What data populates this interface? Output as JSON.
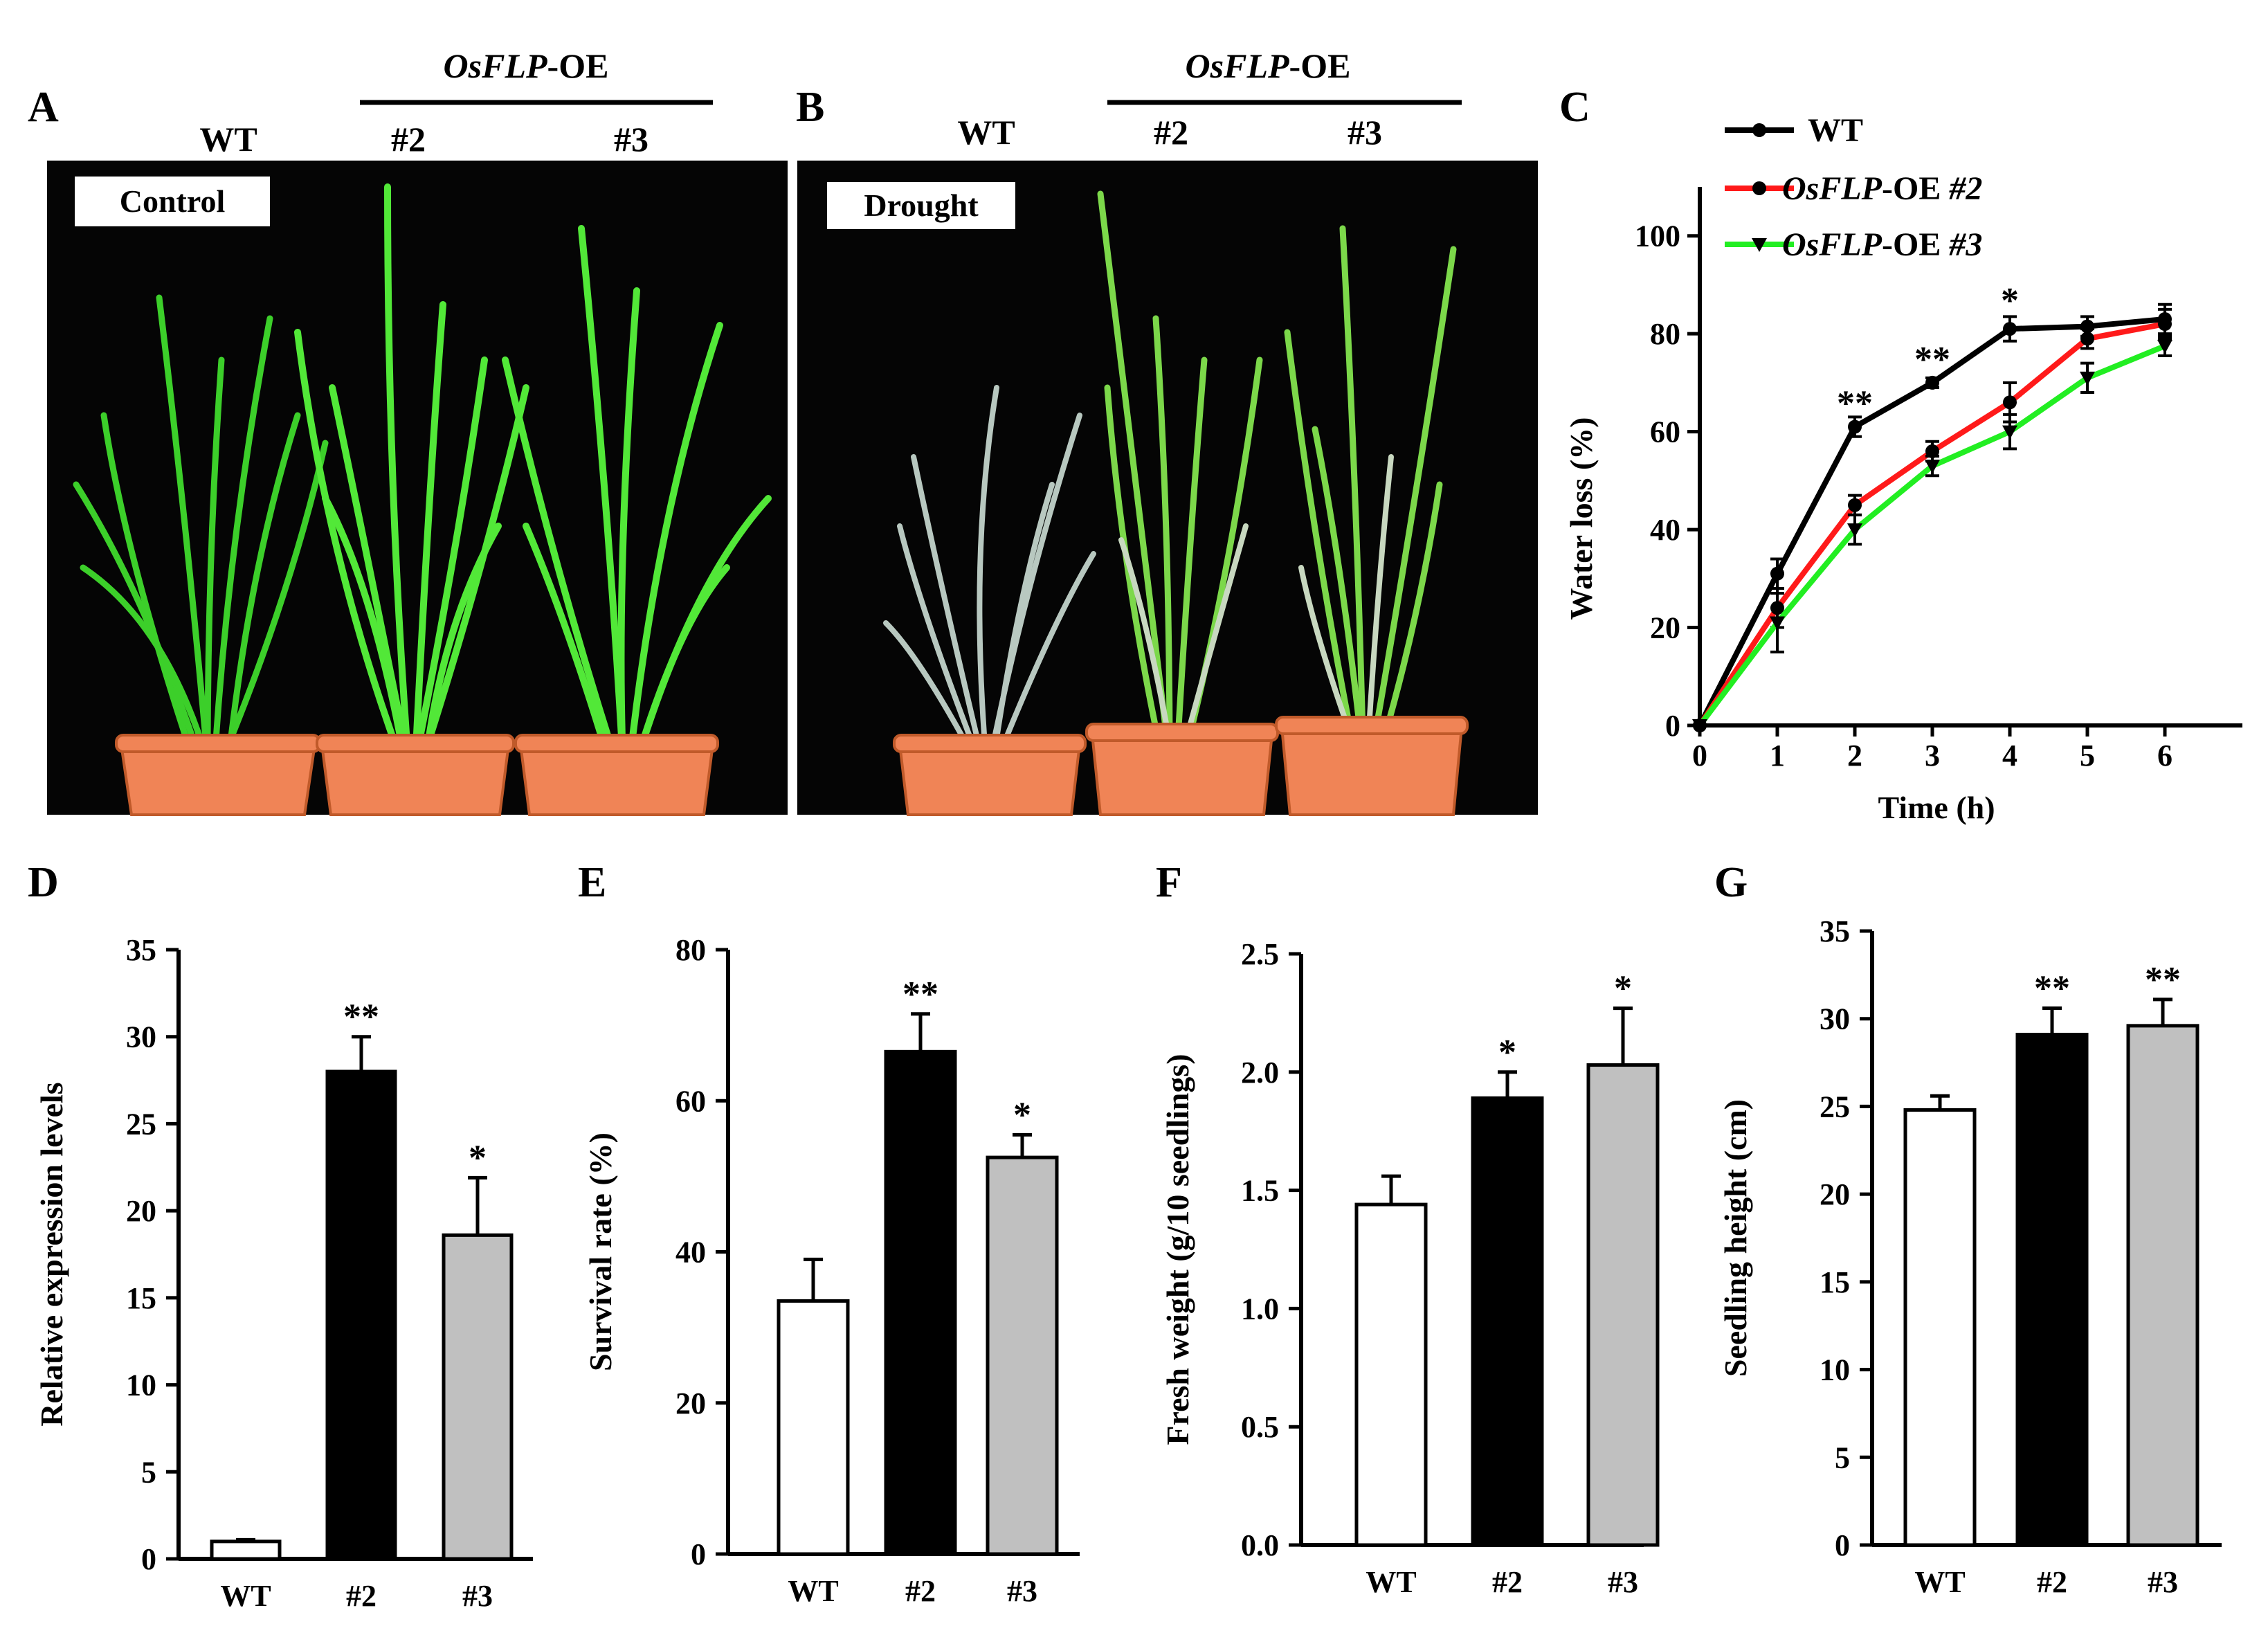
{
  "panels": {
    "A": {
      "letter": "A",
      "condition": "Control",
      "wt": "WT",
      "group_prefix": "OsFLP",
      "group_suffix": "-OE",
      "line2": "#2",
      "line3": "#3"
    },
    "B": {
      "letter": "B",
      "condition": "Drought",
      "wt": "WT",
      "group_prefix": "OsFLP",
      "group_suffix": "-OE",
      "line2": "#2",
      "line3": "#3"
    }
  },
  "colors": {
    "wt": "#000000",
    "oe2": "#ff1a1a",
    "oe3": "#22ee22",
    "bar_wt": "#ffffff",
    "bar_oe2": "#000000",
    "bar_oe3": "#c0c0c0"
  },
  "chart_data": [
    {
      "id": "C",
      "letter": "C",
      "type": "line",
      "title": "",
      "xlabel": "Time (h)",
      "ylabel": "Water loss (%)",
      "x": [
        0,
        1,
        2,
        3,
        4,
        5,
        6
      ],
      "xticks": [
        "0",
        "1",
        "2",
        "3",
        "4",
        "5",
        "6"
      ],
      "yticks": [
        "0",
        "20",
        "40",
        "60",
        "80",
        "100"
      ],
      "ylim": [
        0,
        110
      ],
      "series": [
        {
          "name": "WT",
          "name_italic": "",
          "name_plain": "WT",
          "name_suffix": "",
          "color": "#000000",
          "marker": "circle",
          "values": [
            0,
            31,
            61,
            70,
            81,
            81.5,
            83
          ],
          "errors": [
            0,
            3,
            2,
            1,
            2.5,
            2,
            3
          ]
        },
        {
          "name": "OsFLP-OE #2",
          "name_italic": "OsFLP",
          "name_plain": "-OE ",
          "name_suffix": "#2",
          "color": "#ff1a1a",
          "marker": "circle",
          "values": [
            0,
            24,
            45,
            56,
            66,
            79,
            82
          ],
          "errors": [
            0,
            4,
            2,
            2,
            4,
            2,
            3
          ]
        },
        {
          "name": "OsFLP-OE #3",
          "name_italic": "OsFLP",
          "name_plain": "-OE ",
          "name_suffix": "#3",
          "color": "#22ee22",
          "marker": "triangle",
          "values": [
            0,
            21,
            40,
            53,
            60,
            71,
            77.5
          ],
          "errors": [
            0,
            6,
            3,
            2,
            3.5,
            3,
            2
          ]
        }
      ],
      "annotations": [
        {
          "x": 2,
          "text": "**",
          "y": 62
        },
        {
          "x": 3,
          "text": "**",
          "y": 71
        },
        {
          "x": 4,
          "text": "*",
          "y": 83
        }
      ],
      "legend": "top-left"
    },
    {
      "id": "D",
      "letter": "D",
      "type": "bar",
      "categories": [
        "WT",
        "#2",
        "#3"
      ],
      "values": [
        1,
        28,
        18.6
      ],
      "errors": [
        0.1,
        2,
        3.3
      ],
      "significance": [
        "",
        "**",
        "*"
      ],
      "ylabel": "Relative expression levels",
      "yticks": [
        "0",
        "5",
        "10",
        "15",
        "20",
        "25",
        "30",
        "35"
      ],
      "ylim": [
        0,
        35
      ]
    },
    {
      "id": "E",
      "letter": "E",
      "type": "bar",
      "categories": [
        "WT",
        "#2",
        "#3"
      ],
      "values": [
        33.5,
        66.5,
        52.5
      ],
      "errors": [
        5.5,
        5,
        3
      ],
      "significance": [
        "",
        "**",
        "*"
      ],
      "ylabel": "Survival rate (%)",
      "yticks": [
        "0",
        "20",
        "40",
        "60",
        "80"
      ],
      "ylim": [
        0,
        80
      ]
    },
    {
      "id": "F",
      "letter": "F",
      "type": "bar",
      "categories": [
        "WT",
        "#2",
        "#3"
      ],
      "values": [
        1.44,
        1.89,
        2.03
      ],
      "errors": [
        0.12,
        0.11,
        0.24
      ],
      "significance": [
        "",
        "*",
        "*"
      ],
      "ylabel": "Fresh weight (g/10 seedlings)",
      "yticks": [
        "0.0",
        "0.5",
        "1.0",
        "1.5",
        "2.0",
        "2.5"
      ],
      "ylim": [
        0,
        2.5
      ]
    },
    {
      "id": "G",
      "letter": "G",
      "type": "bar",
      "categories": [
        "WT",
        "#2",
        "#3"
      ],
      "values": [
        24.8,
        29.1,
        29.6
      ],
      "errors": [
        0.8,
        1.5,
        1.5
      ],
      "significance": [
        "",
        "**",
        "**"
      ],
      "ylabel": "Seedling height (cm)",
      "yticks": [
        "0",
        "5",
        "10",
        "15",
        "20",
        "25",
        "30",
        "35"
      ],
      "ylim": [
        0,
        35
      ]
    }
  ]
}
